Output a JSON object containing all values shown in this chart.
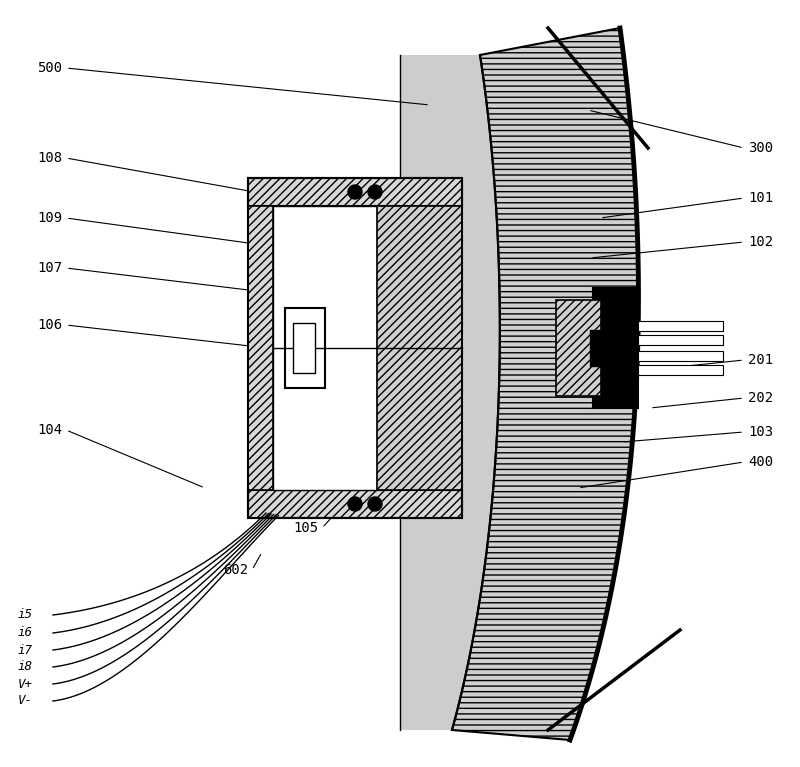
{
  "bg_color": "#ffffff",
  "line_color": "#000000",
  "label_defs": [
    [
      "500",
      62,
      68,
      430,
      105
    ],
    [
      "108",
      62,
      158,
      310,
      202
    ],
    [
      "109",
      62,
      218,
      285,
      248
    ],
    [
      "107",
      62,
      268,
      290,
      295
    ],
    [
      "106",
      62,
      325,
      355,
      358
    ],
    [
      "104",
      62,
      430,
      205,
      488
    ],
    [
      "105",
      318,
      528,
      355,
      492
    ],
    [
      "602",
      248,
      570,
      262,
      552
    ],
    [
      "300",
      748,
      148,
      588,
      110
    ],
    [
      "101",
      748,
      198,
      600,
      218
    ],
    [
      "102",
      748,
      242,
      590,
      258
    ],
    [
      "201",
      748,
      360,
      668,
      368
    ],
    [
      "202",
      748,
      398,
      650,
      408
    ],
    [
      "103",
      748,
      432,
      622,
      442
    ],
    [
      "400",
      748,
      462,
      578,
      488
    ]
  ],
  "wire_labels": [
    [
      "i5",
      18,
      615
    ],
    [
      "i6",
      18,
      633
    ],
    [
      "i7",
      18,
      650
    ],
    [
      "i8",
      18,
      667
    ],
    [
      "V+",
      18,
      684
    ],
    [
      "V-",
      18,
      701
    ]
  ]
}
